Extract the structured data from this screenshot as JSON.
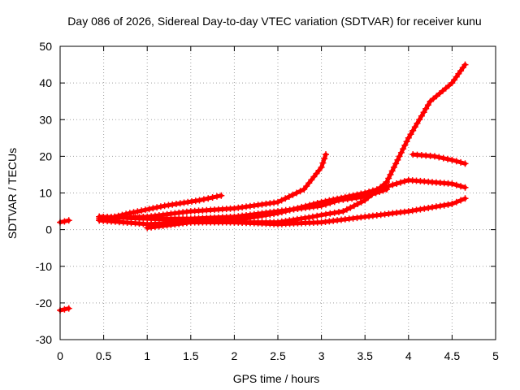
{
  "chart_data": {
    "type": "scatter",
    "title": "Day 086 of 2026, Sidereal Day-to-day VTEC variation (SDTVAR) for receiver kunu",
    "xlabel": "GPS time / hours",
    "ylabel": "SDTVAR / TECUs",
    "xlim": [
      0,
      5
    ],
    "ylim": [
      -30,
      50
    ],
    "xticks": [
      0,
      0.5,
      1,
      1.5,
      2,
      2.5,
      3,
      3.5,
      4,
      4.5,
      5
    ],
    "yticks": [
      -30,
      -20,
      -10,
      0,
      10,
      20,
      30,
      40,
      50
    ],
    "xtick_labels": [
      "0",
      "0.5",
      "1",
      "1.5",
      "2",
      "2.5",
      "3",
      "3.5",
      "4",
      "4.5",
      "5"
    ],
    "ytick_labels": [
      "-30",
      "-20",
      "-10",
      "0",
      "10",
      "20",
      "30",
      "40",
      "50"
    ],
    "grid": true,
    "marker": "plus",
    "color": "#ff0000",
    "series": [
      {
        "name": "s1",
        "x": [
          0,
          0.1
        ],
        "y": [
          2,
          2.5
        ]
      },
      {
        "name": "s2",
        "x": [
          0,
          0.1
        ],
        "y": [
          -22,
          -21.5
        ]
      },
      {
        "name": "s3",
        "x": [
          0.45,
          0.8,
          1.2,
          1.6,
          1.85
        ],
        "y": [
          2.5,
          4.5,
          6.5,
          8,
          9.3
        ]
      },
      {
        "name": "s4",
        "x": [
          0.45,
          1,
          1.5,
          2,
          2.5,
          2.8,
          3.0,
          3.05
        ],
        "y": [
          3,
          3.5,
          5,
          5.8,
          7.5,
          11,
          17,
          20.5
        ]
      },
      {
        "name": "s5",
        "x": [
          0.45,
          1,
          1.5,
          2,
          2.5,
          3,
          3.2,
          3.5,
          3.75
        ],
        "y": [
          3.5,
          3,
          3,
          3.5,
          5,
          6.5,
          8,
          9,
          11
        ]
      },
      {
        "name": "s6",
        "x": [
          0.45,
          1,
          1.5,
          2,
          2.5,
          2.9,
          3.0,
          3.25,
          3.5,
          3.75,
          4.0,
          4.25,
          4.5,
          4.65
        ],
        "y": [
          3.5,
          3,
          2.5,
          2,
          2,
          3.5,
          4,
          5,
          8,
          13,
          25,
          35,
          40,
          45
        ]
      },
      {
        "name": "s7",
        "x": [
          0.45,
          1,
          1.5,
          2,
          2.5,
          3,
          3.5,
          4,
          4.5,
          4.65
        ],
        "y": [
          2.5,
          1.5,
          2,
          2.5,
          4.5,
          7.5,
          10,
          13.5,
          12.5,
          11.5
        ]
      },
      {
        "name": "s8",
        "x": [
          1,
          1.5,
          2,
          2.5,
          3,
          3.5,
          4,
          4.5,
          4.65
        ],
        "y": [
          0.5,
          2,
          2,
          1.5,
          2,
          3.5,
          5,
          7,
          8.5
        ]
      },
      {
        "name": "s9",
        "x": [
          4.05,
          4.3,
          4.5,
          4.65
        ],
        "y": [
          20.5,
          20,
          19,
          18
        ]
      }
    ]
  }
}
